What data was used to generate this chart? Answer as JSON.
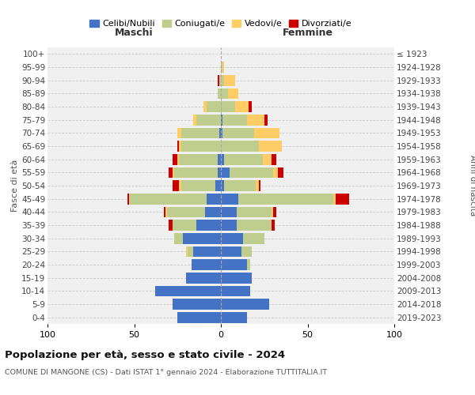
{
  "age_groups": [
    "0-4",
    "5-9",
    "10-14",
    "15-19",
    "20-24",
    "25-29",
    "30-34",
    "35-39",
    "40-44",
    "45-49",
    "50-54",
    "55-59",
    "60-64",
    "65-69",
    "70-74",
    "75-79",
    "80-84",
    "85-89",
    "90-94",
    "95-99",
    "100+"
  ],
  "birth_years": [
    "2019-2023",
    "2014-2018",
    "2009-2013",
    "2004-2008",
    "1999-2003",
    "1994-1998",
    "1989-1993",
    "1984-1988",
    "1979-1983",
    "1974-1978",
    "1969-1973",
    "1964-1968",
    "1959-1963",
    "1954-1958",
    "1949-1953",
    "1944-1948",
    "1939-1943",
    "1934-1938",
    "1929-1933",
    "1924-1928",
    "≤ 1923"
  ],
  "males": {
    "celibi": [
      25,
      28,
      38,
      20,
      17,
      16,
      22,
      14,
      9,
      8,
      3,
      2,
      2,
      0,
      1,
      0,
      0,
      0,
      0,
      0,
      0
    ],
    "coniugati": [
      0,
      0,
      0,
      0,
      0,
      3,
      5,
      14,
      22,
      45,
      20,
      25,
      22,
      23,
      22,
      14,
      8,
      2,
      1,
      0,
      0
    ],
    "vedovi": [
      0,
      0,
      0,
      0,
      0,
      1,
      0,
      0,
      1,
      0,
      1,
      1,
      1,
      1,
      2,
      2,
      2,
      0,
      0,
      0,
      0
    ],
    "divorziati": [
      0,
      0,
      0,
      0,
      0,
      0,
      0,
      2,
      1,
      1,
      4,
      2,
      3,
      1,
      0,
      0,
      0,
      0,
      1,
      0,
      0
    ]
  },
  "females": {
    "nubili": [
      15,
      28,
      17,
      18,
      15,
      12,
      13,
      9,
      9,
      10,
      2,
      5,
      2,
      0,
      1,
      1,
      0,
      0,
      0,
      0,
      0
    ],
    "coniugate": [
      0,
      0,
      0,
      0,
      2,
      6,
      12,
      20,
      20,
      55,
      18,
      25,
      22,
      22,
      18,
      14,
      8,
      4,
      2,
      1,
      0
    ],
    "vedove": [
      0,
      0,
      0,
      0,
      0,
      0,
      0,
      0,
      1,
      1,
      2,
      3,
      5,
      13,
      15,
      10,
      8,
      6,
      6,
      1,
      0
    ],
    "divorziate": [
      0,
      0,
      0,
      0,
      0,
      0,
      0,
      2,
      2,
      8,
      1,
      3,
      3,
      0,
      0,
      2,
      2,
      0,
      0,
      0,
      0
    ]
  },
  "colors": {
    "celibi": "#4472C4",
    "coniugati": "#BFCE8E",
    "vedovi": "#FFCC66",
    "divorziati": "#CC0000"
  },
  "xlim": 100,
  "title": "Popolazione per età, sesso e stato civile - 2024",
  "subtitle": "COMUNE DI MANGONE (CS) - Dati ISTAT 1° gennaio 2024 - Elaborazione TUTTITALIA.IT",
  "ylabel_left": "Fasce di età",
  "ylabel_right": "Anni di nascita",
  "xlabel_left": "Maschi",
  "xlabel_right": "Femmine"
}
